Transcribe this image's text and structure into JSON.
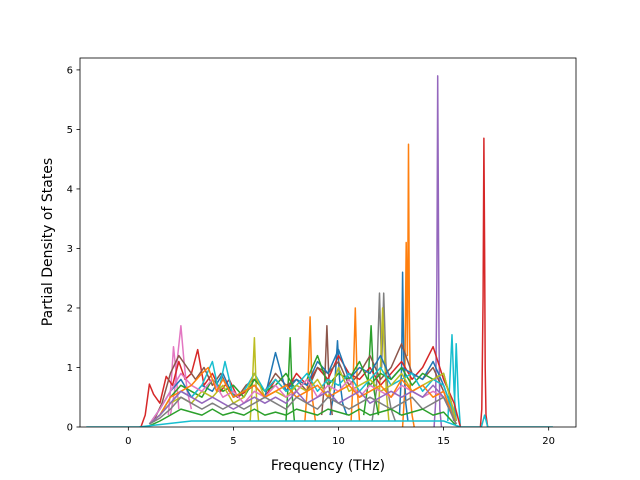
{
  "chart_data": {
    "type": "line",
    "title": "",
    "xlabel": "Frequency (THz)",
    "ylabel": "Partial Density of States",
    "xlim": [
      -2.3,
      21.3
    ],
    "ylim": [
      0,
      6.2
    ],
    "xticks": [
      0,
      5,
      10,
      15,
      20
    ],
    "yticks": [
      0,
      1,
      2,
      3,
      4,
      5,
      6
    ],
    "xtick_labels": [
      "0",
      "5",
      "10",
      "15",
      "20"
    ],
    "ytick_labels": [
      "0",
      "1",
      "2",
      "3",
      "4",
      "5",
      "6"
    ],
    "grid": false,
    "legend": "none",
    "palette": [
      "#1f77b4",
      "#ff7f0e",
      "#2ca02c",
      "#d62728",
      "#9467bd",
      "#8c564b",
      "#e377c2",
      "#7f7f7f",
      "#bcbd22",
      "#17becf"
    ],
    "series": [
      {
        "color": "#9467bd",
        "x": [
          14.55,
          14.62,
          14.68,
          14.72,
          14.75,
          14.78,
          14.82,
          14.9
        ],
        "y": [
          0,
          0.4,
          2.5,
          5.9,
          4.0,
          1.5,
          0.3,
          0
        ]
      },
      {
        "color": "#d62728",
        "x": [
          16.75,
          16.82,
          16.88,
          16.92,
          16.95,
          16.98,
          17.02,
          17.1
        ],
        "y": [
          0,
          0.3,
          2.2,
          4.85,
          3.0,
          1.0,
          0.2,
          0
        ]
      },
      {
        "color": "#ff7f0e",
        "x": [
          13.05,
          13.15,
          13.22,
          13.28,
          13.33,
          13.37,
          13.42,
          13.5,
          13.6
        ],
        "y": [
          0,
          0.6,
          3.1,
          1.2,
          4.75,
          2.0,
          0.5,
          0.2,
          0
        ]
      },
      {
        "color": "#7f7f7f",
        "x": [
          11.6,
          11.8,
          11.95,
          12.05,
          12.15,
          12.25,
          12.35,
          12.5,
          12.7
        ],
        "y": [
          0.1,
          0.6,
          2.25,
          1.0,
          2.25,
          1.1,
          0.6,
          0.3,
          0.1
        ]
      },
      {
        "color": "#1f77b4",
        "x": [
          12.9,
          13.0,
          13.05,
          13.1,
          13.2,
          13.3
        ],
        "y": [
          0.2,
          1.0,
          2.6,
          1.2,
          0.4,
          0.1
        ]
      },
      {
        "color": "#bcbd22",
        "x": [
          11.9,
          12.0,
          12.1,
          12.2,
          12.3,
          12.4
        ],
        "y": [
          0.2,
          1.0,
          2.0,
          1.1,
          0.5,
          0.1
        ]
      },
      {
        "color": "#ff7f0e",
        "x": [
          10.6,
          10.7,
          10.8,
          10.9,
          11.0
        ],
        "y": [
          0.1,
          0.8,
          2.0,
          0.6,
          0.1
        ]
      },
      {
        "color": "#ff7f0e",
        "x": [
          8.4,
          8.55,
          8.65,
          8.75,
          8.9
        ],
        "y": [
          0.1,
          0.8,
          1.85,
          0.5,
          0.1
        ]
      },
      {
        "color": "#2ca02c",
        "x": [
          7.5,
          7.6,
          7.7,
          7.8,
          7.9
        ],
        "y": [
          0.1,
          0.7,
          1.5,
          0.5,
          0.1
        ]
      },
      {
        "color": "#bcbd22",
        "x": [
          5.8,
          5.9,
          6.0,
          6.1,
          6.2
        ],
        "y": [
          0.1,
          0.7,
          1.5,
          0.5,
          0.1
        ]
      },
      {
        "color": "#e377c2",
        "x": [
          2.0,
          2.2,
          2.35,
          2.5,
          2.65,
          2.8,
          3.0
        ],
        "y": [
          0.2,
          0.6,
          1.2,
          1.7,
          1.1,
          0.6,
          0.3
        ]
      },
      {
        "color": "#e377c2",
        "x": [
          1.9,
          2.05,
          2.15,
          2.25,
          2.4
        ],
        "y": [
          0.2,
          0.8,
          1.35,
          1.0,
          0.3
        ]
      },
      {
        "color": "#17becf",
        "x": [
          15.2,
          15.3,
          15.4,
          15.5,
          15.6
        ],
        "y": [
          0.1,
          0.8,
          1.55,
          0.6,
          0.1
        ]
      },
      {
        "color": "#17becf",
        "x": [
          15.5,
          15.6,
          15.7,
          15.8
        ],
        "y": [
          0.1,
          1.4,
          0.5,
          0
        ]
      },
      {
        "color": "#1f77b4",
        "x": [
          9.6,
          9.8,
          9.95,
          10.05,
          10.2,
          10.4
        ],
        "y": [
          0.2,
          0.6,
          1.45,
          0.8,
          0.4,
          0.2
        ]
      },
      {
        "color": "#8c564b",
        "x": [
          9.2,
          9.35,
          9.45,
          9.55,
          9.7
        ],
        "y": [
          0.2,
          0.8,
          1.7,
          0.7,
          0.2
        ]
      },
      {
        "color": "#2ca02c",
        "x": [
          11.2,
          11.4,
          11.55,
          11.7,
          11.9
        ],
        "y": [
          0.2,
          0.7,
          1.7,
          0.6,
          0.2
        ]
      },
      {
        "color": "#d62728",
        "x": [
          0.6,
          0.8,
          1.0,
          1.2,
          1.5,
          1.8,
          2.1,
          2.4,
          2.7,
          3.0,
          3.3,
          3.6,
          4.0,
          4.4,
          4.8,
          5.2,
          5.6,
          6.0,
          6.5,
          7.0,
          7.5,
          8.0,
          8.5,
          9.0,
          9.5,
          10.0,
          10.5,
          11.0,
          11.5,
          12.0,
          12.5,
          13.0,
          13.5,
          14.0,
          14.5,
          15.0,
          15.5,
          15.8
        ],
        "y": [
          0,
          0.2,
          0.72,
          0.55,
          0.4,
          0.85,
          0.7,
          1.1,
          0.8,
          0.9,
          1.3,
          0.7,
          0.9,
          0.6,
          0.8,
          0.5,
          0.6,
          0.7,
          0.5,
          0.8,
          0.6,
          0.9,
          0.7,
          1.0,
          0.8,
          1.2,
          0.9,
          0.8,
          1.0,
          0.7,
          0.9,
          1.1,
          0.8,
          1.0,
          1.35,
          0.8,
          0.4,
          0
        ]
      },
      {
        "color": "#8c564b",
        "x": [
          1.2,
          1.6,
          2.0,
          2.4,
          2.8,
          3.2,
          3.6,
          4.0,
          4.4,
          4.8,
          5.2,
          5.6,
          6.0,
          6.5,
          7.0,
          7.5,
          8.0,
          8.5,
          9.0,
          9.5,
          10.0,
          10.5,
          11.0,
          11.5,
          12.0,
          12.5,
          13.0,
          13.5,
          14.0,
          14.5,
          15.0,
          15.5
        ],
        "y": [
          0.1,
          0.4,
          0.9,
          1.2,
          1.0,
          0.8,
          1.0,
          0.7,
          0.9,
          0.6,
          0.5,
          0.7,
          0.8,
          0.6,
          0.9,
          0.7,
          0.8,
          0.6,
          1.0,
          0.9,
          1.1,
          0.7,
          0.9,
          1.2,
          0.8,
          1.0,
          1.4,
          0.9,
          0.8,
          1.0,
          0.6,
          0.1
        ]
      },
      {
        "color": "#1f77b4",
        "x": [
          1.0,
          1.5,
          2.0,
          2.5,
          3.0,
          3.5,
          4.0,
          4.5,
          5.0,
          5.5,
          6.0,
          6.5,
          7.0,
          7.5,
          8.0,
          8.5,
          9.0,
          9.5,
          10.0,
          10.5,
          11.0,
          11.5,
          12.0,
          12.5,
          13.0,
          13.5,
          14.0,
          14.5,
          15.0,
          15.6
        ],
        "y": [
          0.05,
          0.3,
          0.6,
          0.8,
          0.5,
          0.7,
          0.6,
          0.9,
          0.5,
          0.6,
          0.7,
          0.5,
          1.25,
          0.6,
          0.8,
          0.7,
          1.1,
          0.9,
          1.3,
          0.8,
          1.0,
          0.9,
          1.2,
          0.8,
          1.0,
          0.9,
          0.8,
          1.1,
          0.7,
          0.1
        ]
      },
      {
        "color": "#2ca02c",
        "x": [
          1.0,
          1.5,
          2.0,
          2.5,
          3.0,
          3.5,
          4.0,
          4.5,
          5.0,
          5.5,
          6.0,
          6.5,
          7.0,
          7.5,
          8.0,
          8.5,
          9.0,
          9.5,
          10.0,
          10.5,
          11.0,
          11.5,
          12.0,
          12.5,
          13.0,
          13.5,
          14.0,
          14.5,
          15.0,
          15.6
        ],
        "y": [
          0.05,
          0.2,
          0.5,
          0.7,
          0.6,
          0.5,
          0.8,
          0.6,
          0.7,
          0.5,
          0.8,
          0.6,
          0.7,
          0.9,
          0.6,
          0.8,
          1.2,
          0.7,
          0.9,
          0.8,
          1.1,
          0.7,
          0.9,
          0.8,
          1.0,
          0.7,
          0.9,
          0.8,
          0.9,
          0.1
        ]
      },
      {
        "color": "#17becf",
        "x": [
          1.0,
          1.5,
          2.0,
          2.5,
          3.0,
          3.5,
          4.0,
          4.3,
          4.6,
          5.0,
          5.5,
          6.0,
          6.5,
          7.0,
          7.5,
          8.0,
          8.5,
          9.0,
          9.5,
          10.0,
          10.5,
          11.0,
          11.5,
          12.0,
          12.5,
          13.0,
          13.5,
          14.0,
          14.5,
          15.0,
          15.6
        ],
        "y": [
          0.05,
          0.2,
          0.4,
          0.6,
          0.5,
          0.7,
          1.1,
          0.6,
          1.1,
          0.5,
          0.6,
          0.9,
          0.6,
          0.8,
          0.6,
          0.7,
          0.9,
          0.6,
          0.8,
          0.7,
          0.9,
          0.6,
          0.8,
          1.0,
          0.7,
          0.8,
          0.9,
          0.6,
          0.8,
          0.7,
          0.1
        ]
      },
      {
        "color": "#bcbd22",
        "x": [
          1.0,
          1.5,
          2.0,
          2.5,
          3.0,
          3.5,
          4.0,
          4.5,
          5.0,
          5.5,
          6.0,
          6.5,
          7.0,
          7.5,
          8.0,
          8.5,
          9.0,
          9.5,
          10.0,
          10.5,
          11.0,
          11.5,
          12.0,
          12.5,
          13.0,
          13.5,
          14.0,
          14.5,
          15.0,
          15.6
        ],
        "y": [
          0.05,
          0.2,
          0.4,
          0.5,
          0.4,
          0.6,
          0.5,
          0.7,
          0.4,
          0.5,
          0.9,
          0.5,
          0.6,
          0.5,
          0.7,
          0.6,
          0.8,
          0.5,
          1.0,
          0.6,
          0.7,
          0.8,
          0.6,
          0.7,
          0.9,
          0.6,
          0.7,
          0.8,
          0.9,
          0.1
        ]
      },
      {
        "color": "#e377c2",
        "x": [
          1.0,
          1.5,
          2.0,
          2.5,
          3.0,
          3.5,
          4.0,
          4.5,
          5.0,
          5.5,
          6.0,
          6.5,
          7.0,
          7.5,
          8.0,
          8.5,
          9.0,
          9.5,
          10.0,
          10.5,
          11.0,
          11.5,
          12.0,
          12.5,
          13.0,
          13.5,
          14.0,
          14.5,
          15.0,
          15.6
        ],
        "y": [
          0.05,
          0.3,
          0.6,
          0.9,
          0.7,
          0.6,
          0.8,
          0.5,
          0.6,
          0.4,
          0.6,
          0.5,
          0.7,
          0.5,
          0.6,
          0.8,
          0.5,
          0.7,
          0.6,
          0.8,
          0.5,
          0.7,
          0.6,
          0.5,
          0.7,
          0.6,
          0.5,
          0.6,
          0.5,
          0.05
        ]
      },
      {
        "color": "#ff7f0e",
        "x": [
          1.0,
          1.5,
          2.0,
          2.5,
          3.0,
          3.5,
          3.8,
          4.2,
          4.5,
          5.0,
          5.5,
          6.0,
          6.5,
          7.0,
          7.5,
          8.0,
          8.5,
          9.0,
          9.5,
          10.0,
          10.5,
          11.0,
          11.5,
          12.0,
          12.5,
          13.0,
          13.5,
          14.0,
          14.5,
          15.0,
          15.6
        ],
        "y": [
          0.05,
          0.2,
          0.5,
          0.6,
          0.7,
          0.9,
          1.0,
          0.6,
          0.8,
          0.5,
          0.6,
          0.7,
          0.5,
          0.6,
          0.7,
          0.5,
          0.6,
          0.7,
          0.5,
          0.6,
          0.7,
          0.5,
          0.6,
          0.7,
          0.5,
          0.8,
          0.6,
          0.7,
          0.5,
          0.6,
          0.05
        ]
      },
      {
        "color": "#9467bd",
        "x": [
          1.0,
          1.5,
          2.0,
          2.5,
          3.0,
          3.5,
          4.0,
          4.5,
          5.0,
          5.5,
          6.0,
          6.5,
          7.0,
          7.5,
          8.0,
          8.5,
          9.0,
          9.5,
          10.0,
          10.5,
          11.0,
          11.5,
          12.0,
          12.5,
          13.0,
          13.5,
          14.0,
          14.5,
          15.0,
          15.6
        ],
        "y": [
          0.05,
          0.2,
          0.4,
          0.6,
          0.5,
          0.4,
          0.5,
          0.4,
          0.3,
          0.4,
          0.5,
          0.4,
          0.5,
          0.4,
          0.6,
          0.4,
          0.5,
          0.6,
          0.4,
          0.5,
          0.6,
          0.4,
          0.5,
          0.6,
          0.5,
          0.6,
          0.5,
          0.7,
          0.5,
          0.05
        ]
      },
      {
        "color": "#7f7f7f",
        "x": [
          1.0,
          1.5,
          2.0,
          2.5,
          3.0,
          3.5,
          4.0,
          4.5,
          5.0,
          5.5,
          6.0,
          6.5,
          7.0,
          7.5,
          8.0,
          8.5,
          9.0,
          9.5,
          10.0,
          10.5,
          11.0,
          11.5,
          12.0,
          12.5,
          13.0,
          13.5,
          14.0,
          14.5,
          15.0,
          15.6
        ],
        "y": [
          0.05,
          0.15,
          0.3,
          0.5,
          0.4,
          0.3,
          0.4,
          0.3,
          0.4,
          0.3,
          0.4,
          0.5,
          0.4,
          0.3,
          0.5,
          0.4,
          0.3,
          0.5,
          0.4,
          0.3,
          0.4,
          0.5,
          0.4,
          0.3,
          0.4,
          0.5,
          0.3,
          0.4,
          0.5,
          0.05
        ]
      },
      {
        "color": "#2ca02c",
        "x": [
          1.0,
          1.5,
          2.0,
          2.5,
          3.0,
          3.5,
          4.0,
          4.5,
          5.0,
          5.5,
          6.0,
          6.5,
          7.0,
          7.5,
          8.0,
          8.5,
          9.0,
          9.5,
          10.0,
          10.5,
          11.0,
          11.5,
          12.0,
          12.5,
          13.0,
          13.5,
          14.0,
          14.5,
          15.0,
          15.6
        ],
        "y": [
          0.02,
          0.1,
          0.2,
          0.3,
          0.25,
          0.2,
          0.3,
          0.2,
          0.25,
          0.2,
          0.3,
          0.2,
          0.25,
          0.2,
          0.3,
          0.25,
          0.2,
          0.3,
          0.25,
          0.2,
          0.3,
          0.2,
          0.25,
          0.3,
          0.2,
          0.25,
          0.3,
          0.2,
          0.25,
          0.02
        ]
      },
      {
        "color": "#17becf",
        "x": [
          -2.0,
          0.0,
          0.5,
          1.0,
          3.0,
          6.0,
          9.0,
          12.0,
          15.0,
          15.8,
          16.8,
          16.95,
          17.1,
          18.0,
          20.2
        ],
        "y": [
          0,
          0,
          0,
          0.02,
          0.1,
          0.1,
          0.1,
          0.1,
          0.1,
          0,
          0,
          0.2,
          0,
          0,
          0
        ]
      }
    ]
  }
}
